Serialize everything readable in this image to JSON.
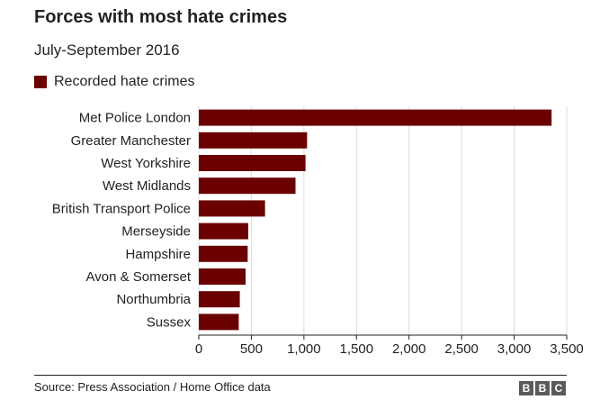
{
  "title": "Forces with most hate crimes",
  "subtitle": "July-September 2016",
  "source": "Source: Press Association / Home Office data",
  "logo": [
    "B",
    "B",
    "C"
  ],
  "colors": {
    "bar": "#6b0000",
    "grid": "#dddddd",
    "axis": "#222222",
    "text": "#222222"
  },
  "chart_data": {
    "type": "bar",
    "orientation": "horizontal",
    "categories": [
      "Met Police London",
      "Greater Manchester",
      "West Yorkshire",
      "West Midlands",
      "British Transport Police",
      "Merseyside",
      "Hampshire",
      "Avon & Somerset",
      "Northumbria",
      "Sussex"
    ],
    "series": [
      {
        "name": "Recorded hate crimes",
        "values": [
          3356,
          1030,
          1015,
          920,
          630,
          470,
          465,
          445,
          390,
          380
        ]
      }
    ],
    "xlim": [
      0,
      3500
    ],
    "xticks": [
      0,
      500,
      1000,
      1500,
      2000,
      2500,
      3000,
      3500
    ],
    "xtick_labels": [
      "0",
      "500",
      "1,000",
      "1,500",
      "2,000",
      "2,500",
      "3,000",
      "3,500"
    ],
    "grid": "vertical",
    "legend": "top-left"
  }
}
